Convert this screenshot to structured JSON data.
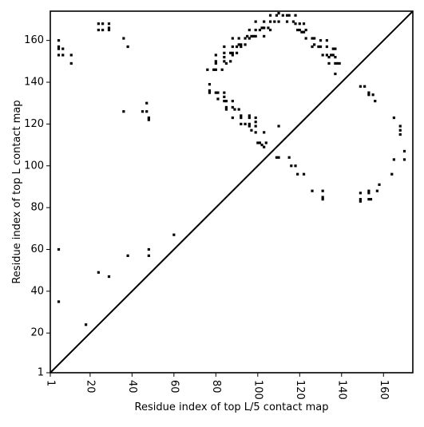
{
  "chart_data": {
    "type": "scatter",
    "title": "",
    "xlabel": "Residue index of top L/5 contact map",
    "ylabel": "Residue index of top L contact map",
    "xlim": [
      1,
      174
    ],
    "ylim": [
      1,
      174
    ],
    "x_ticks": [
      1,
      20,
      40,
      60,
      80,
      100,
      120,
      140,
      160
    ],
    "y_ticks": [
      1,
      20,
      40,
      60,
      80,
      100,
      120,
      140,
      160
    ],
    "x_tick_labels": [
      "1",
      "20",
      "40",
      "60",
      "80",
      "100",
      "120",
      "140",
      "160"
    ],
    "y_tick_labels": [
      "1",
      "20",
      "40",
      "60",
      "80",
      "100",
      "120",
      "140",
      "160"
    ],
    "x_tick_rotation": -90,
    "diagonal": true,
    "grid": false,
    "point_color": "#000000",
    "points_lower_L5": [
      [
        5,
        60
      ],
      [
        5,
        35
      ],
      [
        18,
        24
      ],
      [
        24,
        49
      ],
      [
        29,
        47
      ],
      [
        38,
        57
      ],
      [
        48,
        60
      ],
      [
        48,
        57
      ],
      [
        60,
        67
      ],
      [
        36,
        126
      ],
      [
        45,
        126
      ],
      [
        47,
        126
      ],
      [
        47,
        130
      ],
      [
        48,
        123
      ],
      [
        48,
        122
      ],
      [
        77,
        139
      ],
      [
        77,
        136
      ],
      [
        77,
        135
      ],
      [
        80,
        135
      ],
      [
        81,
        135
      ],
      [
        81,
        132
      ],
      [
        84,
        135
      ],
      [
        84,
        133
      ],
      [
        84,
        131
      ],
      [
        85,
        131
      ],
      [
        85,
        128
      ],
      [
        85,
        127
      ],
      [
        88,
        131
      ],
      [
        88,
        128
      ],
      [
        88,
        123
      ],
      [
        89,
        127
      ],
      [
        91,
        127
      ],
      [
        92,
        124
      ],
      [
        92,
        123
      ],
      [
        92,
        120
      ],
      [
        94,
        120
      ],
      [
        96,
        124
      ],
      [
        96,
        123
      ],
      [
        96,
        120
      ],
      [
        96,
        119
      ],
      [
        97,
        117
      ],
      [
        99,
        123
      ],
      [
        99,
        121
      ],
      [
        99,
        119
      ],
      [
        99,
        116
      ],
      [
        100,
        111
      ],
      [
        101,
        111
      ],
      [
        102,
        110
      ],
      [
        103,
        109
      ],
      [
        103,
        116
      ],
      [
        104,
        111
      ],
      [
        109,
        104
      ],
      [
        110,
        104
      ],
      [
        110,
        119
      ],
      [
        115,
        104
      ],
      [
        116,
        100
      ],
      [
        118,
        100
      ],
      [
        119,
        96
      ],
      [
        122,
        96
      ],
      [
        126,
        88
      ],
      [
        131,
        88
      ],
      [
        131,
        85
      ],
      [
        131,
        84
      ],
      [
        149,
        87
      ],
      [
        149,
        84
      ],
      [
        149,
        83
      ],
      [
        153,
        88
      ],
      [
        153,
        87
      ],
      [
        153,
        84
      ],
      [
        154,
        84
      ],
      [
        157,
        88
      ],
      [
        158,
        91
      ],
      [
        164,
        96
      ],
      [
        165,
        103
      ],
      [
        165,
        123
      ],
      [
        168,
        119
      ],
      [
        168,
        117
      ],
      [
        168,
        115
      ],
      [
        170,
        107
      ],
      [
        170,
        103
      ]
    ],
    "points_upper_L": [
      [
        5,
        160
      ],
      [
        5,
        157
      ],
      [
        5,
        156
      ],
      [
        5,
        153
      ],
      [
        7,
        156
      ],
      [
        7,
        153
      ],
      [
        11,
        153
      ],
      [
        11,
        149
      ],
      [
        24,
        168
      ],
      [
        24,
        165
      ],
      [
        26,
        168
      ],
      [
        26,
        165
      ],
      [
        29,
        168
      ],
      [
        29,
        166
      ],
      [
        29,
        165
      ],
      [
        36,
        161
      ],
      [
        38,
        157
      ],
      [
        76,
        146
      ],
      [
        79,
        146
      ],
      [
        80,
        146
      ],
      [
        80,
        150
      ],
      [
        80,
        149
      ],
      [
        80,
        153
      ],
      [
        83,
        146
      ],
      [
        84,
        150
      ],
      [
        84,
        152
      ],
      [
        84,
        154
      ],
      [
        84,
        157
      ],
      [
        85,
        149
      ],
      [
        87,
        150
      ],
      [
        87,
        154
      ],
      [
        88,
        154
      ],
      [
        88,
        153
      ],
      [
        88,
        157
      ],
      [
        88,
        161
      ],
      [
        90,
        157
      ],
      [
        90,
        154
      ],
      [
        91,
        158
      ],
      [
        91,
        161
      ],
      [
        92,
        158
      ],
      [
        92,
        157
      ],
      [
        94,
        158
      ],
      [
        94,
        161
      ],
      [
        95,
        162
      ],
      [
        96,
        165
      ],
      [
        96,
        161
      ],
      [
        97,
        162
      ],
      [
        98,
        162
      ],
      [
        99,
        165
      ],
      [
        99,
        162
      ],
      [
        99,
        169
      ],
      [
        101,
        165
      ],
      [
        102,
        166
      ],
      [
        103,
        166
      ],
      [
        103,
        162
      ],
      [
        103,
        169
      ],
      [
        105,
        166
      ],
      [
        106,
        169
      ],
      [
        106,
        165
      ],
      [
        106,
        172
      ],
      [
        108,
        169
      ],
      [
        109,
        172
      ],
      [
        110,
        173
      ],
      [
        110,
        169
      ],
      [
        112,
        172
      ],
      [
        114,
        169
      ],
      [
        114,
        172
      ],
      [
        115,
        172
      ],
      [
        117,
        169
      ],
      [
        118,
        172
      ],
      [
        118,
        168
      ],
      [
        119,
        165
      ],
      [
        120,
        168
      ],
      [
        120,
        165
      ],
      [
        121,
        164
      ],
      [
        122,
        168
      ],
      [
        122,
        164
      ],
      [
        123,
        165
      ],
      [
        123,
        161
      ],
      [
        126,
        161
      ],
      [
        126,
        157
      ],
      [
        127,
        158
      ],
      [
        127,
        161
      ],
      [
        129,
        157
      ],
      [
        130,
        160
      ],
      [
        130,
        157
      ],
      [
        131,
        153
      ],
      [
        133,
        157
      ],
      [
        133,
        160
      ],
      [
        133,
        153
      ],
      [
        134,
        149
      ],
      [
        134,
        152
      ],
      [
        135,
        153
      ],
      [
        136,
        153
      ],
      [
        136,
        156
      ],
      [
        137,
        152
      ],
      [
        137,
        149
      ],
      [
        137,
        144
      ],
      [
        138,
        149
      ],
      [
        139,
        149
      ],
      [
        137,
        156
      ],
      [
        149,
        138
      ],
      [
        151,
        138
      ],
      [
        153,
        135
      ],
      [
        153,
        134
      ],
      [
        155,
        134
      ],
      [
        156,
        131
      ]
    ]
  }
}
